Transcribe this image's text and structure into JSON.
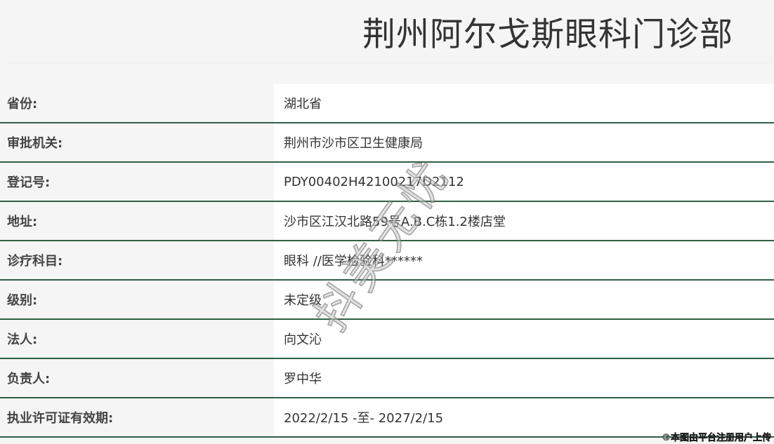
{
  "title": "荆州阿尔戈斯眼科门诊部",
  "rows": [
    {
      "label": "省份:",
      "value": "湖北省"
    },
    {
      "label": "审批机关:",
      "value": "荆州市沙市区卫生健康局"
    },
    {
      "label": "登记号:",
      "value": "PDY00402H42100217D2112"
    },
    {
      "label": "地址:",
      "value": "沙市区江汉北路59号A.B.C栋1.2楼店堂"
    },
    {
      "label": "诊疗科目:",
      "value": "眼科 //医学检验科******"
    },
    {
      "label": "级别:",
      "value": "未定级"
    },
    {
      "label": "法人:",
      "value": "向文沁"
    },
    {
      "label": "负责人:",
      "value": "罗中华"
    },
    {
      "label": "执业许可证有效期:",
      "value": "2022/2/15 -至- 2027/2/15"
    }
  ],
  "watermark": "抖美无忧",
  "credit": "©本图由平台注册用户上传"
}
